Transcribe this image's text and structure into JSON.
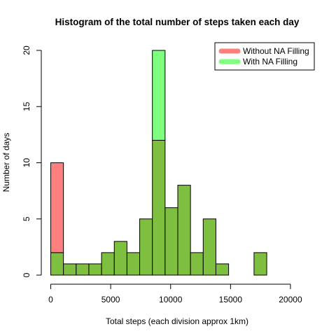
{
  "chart_data": {
    "type": "bar",
    "title": "Histogram of the total number of steps taken each day",
    "xlabel": "Total steps (each division approx 1km)",
    "ylabel": "Number of days",
    "bin_width": 1060,
    "x_start": 0,
    "xlim": [
      0,
      21200
    ],
    "ylim": [
      0,
      20
    ],
    "x_ticks": [
      0,
      5000,
      10000,
      15000,
      20000
    ],
    "y_ticks": [
      0,
      5,
      10,
      15,
      20
    ],
    "series": [
      {
        "name": "Without NA Filling",
        "color": "#ff7f7f",
        "values": [
          10,
          1,
          1,
          1,
          2,
          3,
          2,
          5,
          12,
          6,
          8,
          2,
          5,
          1,
          0,
          0,
          2
        ]
      },
      {
        "name": "With NA Filling",
        "color": "#7fff7f",
        "values": [
          2,
          1,
          1,
          1,
          2,
          3,
          2,
          5,
          20,
          6,
          8,
          2,
          5,
          1,
          0,
          0,
          2
        ]
      }
    ],
    "overlap_color": "#7fbf3f",
    "legend": {
      "position": "top-right",
      "items": [
        "Without NA Filling",
        "With NA Filling"
      ]
    },
    "grid": false
  }
}
